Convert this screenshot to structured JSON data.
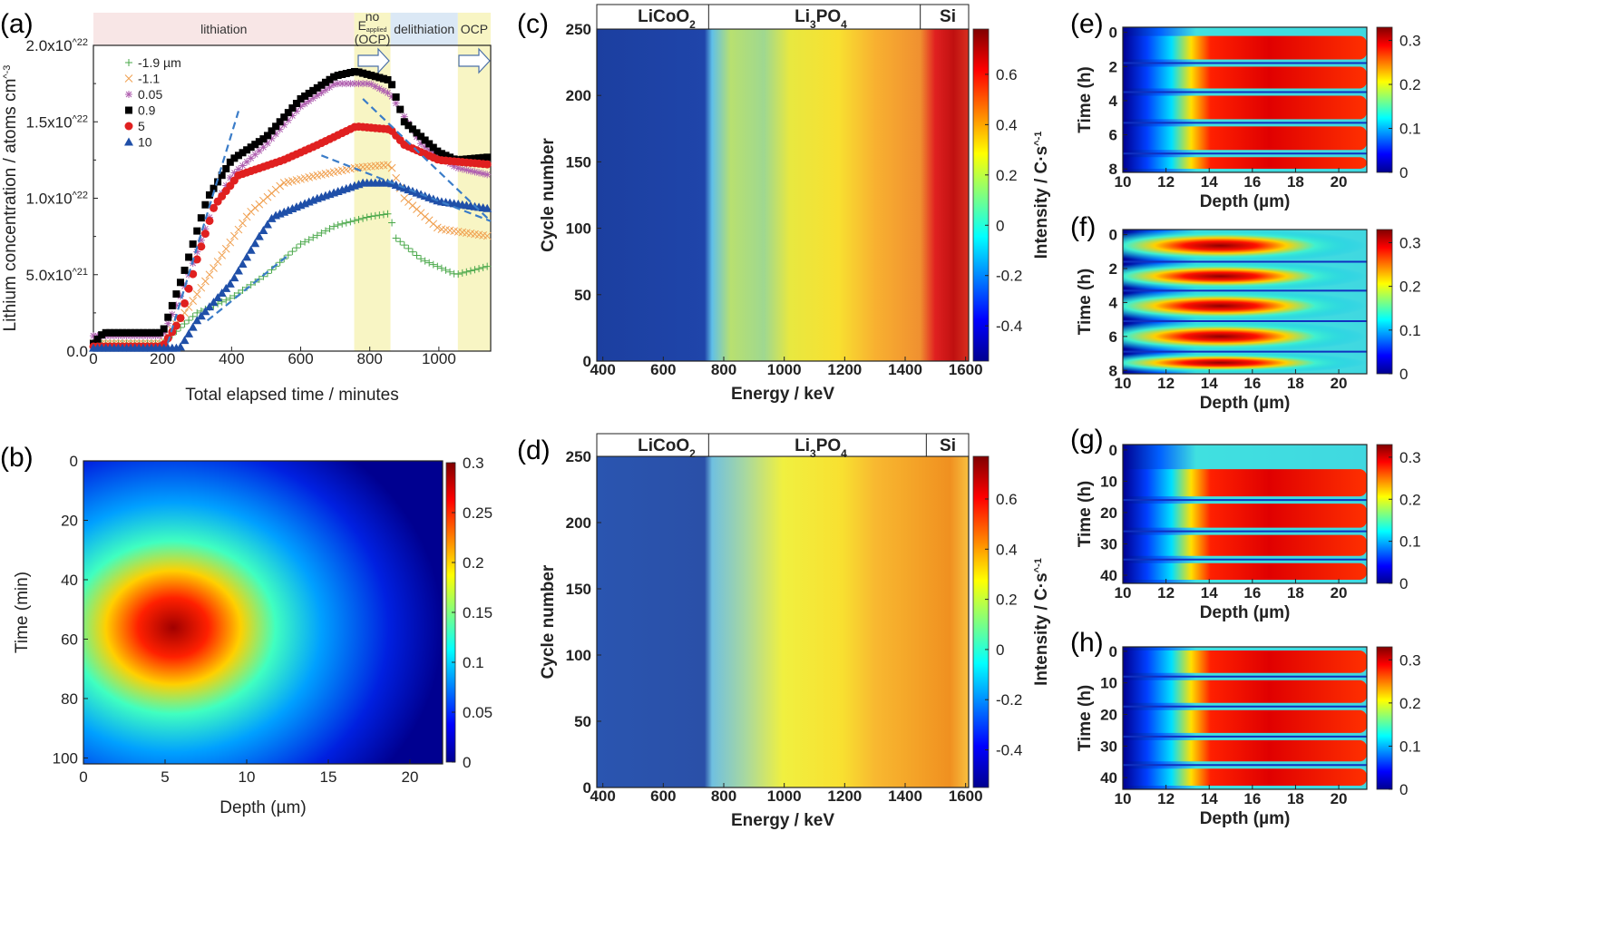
{
  "panel_labels": [
    "(a)",
    "(b)",
    "(c)",
    "(d)",
    "(e)",
    "(f)",
    "(g)",
    "(h)"
  ],
  "colors": {
    "jet": [
      "#00008f",
      "#0000ff",
      "#00ffff",
      "#ffff00",
      "#ff0000",
      "#800000"
    ],
    "lithiation_band": "#f8e6e6",
    "ocp_band": "#f8f5c4",
    "delithiation_band": "#dbe8f5",
    "fit_line": "#3a7cc8"
  },
  "chart_data": [
    {
      "panel": "(a)",
      "type": "scatter",
      "xlabel": "Total elapsed time / minutes",
      "ylabel": "Lithium concentration / atoms cm^-3",
      "xlim": [
        0,
        1150
      ],
      "ylim": [
        0,
        2e+22
      ],
      "xticks": [
        0,
        200,
        400,
        600,
        800,
        1000
      ],
      "yticks": [
        {
          "v": 0,
          "label": "0.0"
        },
        {
          "v": 5e+21,
          "label": "5.0x10^21"
        },
        {
          "v": 1e+22,
          "label": "1.0x10^22"
        },
        {
          "v": 1.5e+22,
          "label": "1.5x10^22"
        },
        {
          "v": 2e+22,
          "label": "2.0x10^22"
        }
      ],
      "phase_bands": [
        {
          "label": "lithiation",
          "from": 0,
          "to": 755,
          "color": "#f8e6e6"
        },
        {
          "label": "no E_applied (OCP)",
          "from": 755,
          "to": 860,
          "color": "#f8f5c4"
        },
        {
          "label": "delithiation",
          "from": 860,
          "to": 1055,
          "color": "#dbe8f5"
        },
        {
          "label": "OCP",
          "from": 1055,
          "to": 1150,
          "color": "#f8f5c4"
        }
      ],
      "legend_position": "top-left",
      "series": [
        {
          "name": "-1.9 µm",
          "marker": "plus",
          "color": "#4aa84a",
          "points": [
            [
              0,
              5e+20
            ],
            [
              200,
              5e+20
            ],
            [
              300,
              2.5e+21
            ],
            [
              400,
              3.5e+21
            ],
            [
              500,
              5e+21
            ],
            [
              600,
              7e+21
            ],
            [
              700,
              8.2e+21
            ],
            [
              800,
              8.8e+21
            ],
            [
              860,
              9e+21
            ],
            [
              870,
              7.5e+21
            ],
            [
              950,
              6e+21
            ],
            [
              1050,
              5e+21
            ],
            [
              1150,
              5.6e+21
            ]
          ]
        },
        {
          "name": "-1.1",
          "marker": "x",
          "color": "#f0a050",
          "points": [
            [
              0,
              5e+20
            ],
            [
              200,
              5e+20
            ],
            [
              280,
              3e+21
            ],
            [
              350,
              5.5e+21
            ],
            [
              450,
              9e+21
            ],
            [
              550,
              1.1e+22
            ],
            [
              650,
              1.15e+22
            ],
            [
              760,
              1.2e+22
            ],
            [
              860,
              1.22e+22
            ],
            [
              900,
              1e+22
            ],
            [
              1000,
              8e+21
            ],
            [
              1150,
              7.5e+21
            ]
          ]
        },
        {
          "name": "0.05",
          "marker": "star",
          "color": "#b060b0",
          "points": [
            [
              0,
              1e+21
            ],
            [
              200,
              1e+21
            ],
            [
              260,
              4e+21
            ],
            [
              340,
              9e+21
            ],
            [
              400,
              1.15e+22
            ],
            [
              500,
              1.35e+22
            ],
            [
              600,
              1.6e+22
            ],
            [
              700,
              1.75e+22
            ],
            [
              800,
              1.75e+22
            ],
            [
              860,
              1.68e+22
            ],
            [
              950,
              1.35e+22
            ],
            [
              1050,
              1.2e+22
            ],
            [
              1150,
              1.15e+22
            ]
          ]
        },
        {
          "name": "0.9",
          "marker": "square",
          "color": "#000000",
          "points": [
            [
              0,
              5e+20
            ],
            [
              30,
              1.2e+21
            ],
            [
              200,
              1.2e+21
            ],
            [
              260,
              5e+21
            ],
            [
              330,
              1e+22
            ],
            [
              400,
              1.25e+22
            ],
            [
              500,
              1.4e+22
            ],
            [
              600,
              1.65e+22
            ],
            [
              700,
              1.8e+22
            ],
            [
              760,
              1.83e+22
            ],
            [
              860,
              1.77e+22
            ],
            [
              900,
              1.5e+22
            ],
            [
              1000,
              1.3e+22
            ],
            [
              1050,
              1.25e+22
            ],
            [
              1150,
              1.27e+22
            ]
          ]
        },
        {
          "name": "5",
          "marker": "circle",
          "color": "#e02020",
          "points": [
            [
              0,
              3e+20
            ],
            [
              200,
              3e+20
            ],
            [
              250,
              2e+21
            ],
            [
              300,
              6e+21
            ],
            [
              350,
              9.5e+21
            ],
            [
              420,
              1.15e+22
            ],
            [
              550,
              1.25e+22
            ],
            [
              650,
              1.35e+22
            ],
            [
              760,
              1.47e+22
            ],
            [
              860,
              1.45e+22
            ],
            [
              900,
              1.35e+22
            ],
            [
              1000,
              1.25e+22
            ],
            [
              1150,
              1.22e+22
            ]
          ]
        },
        {
          "name": "10",
          "marker": "triangle",
          "color": "#1f4fa8",
          "points": [
            [
              0,
              2e+20
            ],
            [
              250,
              2e+20
            ],
            [
              300,
              2e+21
            ],
            [
              400,
              4.5e+21
            ],
            [
              480,
              7.5e+21
            ],
            [
              520,
              8.8e+21
            ],
            [
              650,
              1e+22
            ],
            [
              780,
              1.1e+22
            ],
            [
              860,
              1.1e+22
            ],
            [
              1000,
              9.8e+21
            ],
            [
              1150,
              9.3e+21
            ]
          ]
        }
      ],
      "fit_lines": [
        [
          [
            215,
            5e+20
          ],
          [
            420,
            1.57e+22
          ]
        ],
        [
          [
            330,
            2e+21
          ],
          [
            560,
            6.2e+21
          ]
        ],
        [
          [
            660,
            1.28e+22
          ],
          [
            1150,
            8.5e+21
          ]
        ],
        [
          [
            780,
            1.65e+22
          ],
          [
            1150,
            8.5e+21
          ]
        ]
      ]
    },
    {
      "panel": "(b)",
      "type": "heatmap",
      "xlabel": "Depth (µm)",
      "ylabel": "Time (min)",
      "xlim": [
        0,
        22
      ],
      "ylim": [
        0,
        102
      ],
      "xticks": [
        0,
        5,
        10,
        15,
        20
      ],
      "yticks": [
        0,
        20,
        40,
        60,
        80,
        100
      ],
      "colorbar": {
        "range": [
          0,
          0.3
        ],
        "ticks": [
          {
            "v": 0,
            "label": "0"
          },
          {
            "v": 0.05,
            "label": "0.05"
          },
          {
            "v": 0.1,
            "label": "0.1"
          },
          {
            "v": 0.15,
            "label": "0.15"
          },
          {
            "v": 0.2,
            "label": "0.2"
          },
          {
            "v": 0.25,
            "label": "0.25"
          },
          {
            "v": 0.3,
            "label": "0.3"
          }
        ]
      },
      "peak": {
        "depth": 5.5,
        "time": 55,
        "value": 0.3
      }
    },
    {
      "panel": "(c)",
      "type": "heatmap",
      "xlabel": "Energy / keV",
      "ylabel": "Cycle number",
      "xlim": [
        380,
        1610
      ],
      "ylim": [
        0,
        250
      ],
      "xticks": [
        400,
        600,
        800,
        1000,
        1200,
        1400,
        1600
      ],
      "yticks": [
        0,
        50,
        100,
        150,
        200,
        250
      ],
      "regions": [
        {
          "label": "LiCoO2",
          "from": 380,
          "to": 750
        },
        {
          "label": "Li3PO4",
          "from": 750,
          "to": 1450
        },
        {
          "label": "Si",
          "from": 1450,
          "to": 1610
        }
      ],
      "colorbar": {
        "label": "Intensity / C·s^-1",
        "range": [
          -0.54,
          0.78
        ],
        "ticks": [
          {
            "v": -0.4,
            "label": "-0.4"
          },
          {
            "v": -0.2,
            "label": "-0.2"
          },
          {
            "v": 0,
            "label": "0"
          },
          {
            "v": 0.2,
            "label": "0.2"
          },
          {
            "v": 0.4,
            "label": "0.4"
          },
          {
            "v": 0.6,
            "label": "0.6"
          }
        ]
      }
    },
    {
      "panel": "(d)",
      "type": "heatmap",
      "xlabel": "Energy / keV",
      "ylabel": "Cycle number",
      "xlim": [
        380,
        1610
      ],
      "ylim": [
        0,
        250
      ],
      "xticks": [
        400,
        600,
        800,
        1000,
        1200,
        1400,
        1600
      ],
      "yticks": [
        0,
        50,
        100,
        150,
        200,
        250
      ],
      "regions": [
        {
          "label": "LiCoO2",
          "from": 380,
          "to": 750
        },
        {
          "label": "Li3PO4",
          "from": 750,
          "to": 1470
        },
        {
          "label": "Si",
          "from": 1470,
          "to": 1610
        }
      ],
      "colorbar": {
        "label": "Intensity / C·s^-1",
        "range": [
          -0.55,
          0.77
        ],
        "ticks": [
          {
            "v": -0.4,
            "label": "-0.4"
          },
          {
            "v": -0.2,
            "label": "-0.2"
          },
          {
            "v": 0,
            "label": "0"
          },
          {
            "v": 0.2,
            "label": "0.2"
          },
          {
            "v": 0.4,
            "label": "0.4"
          },
          {
            "v": 0.6,
            "label": "0.6"
          }
        ]
      }
    },
    {
      "panel": "(e)",
      "type": "heatmap",
      "xlabel": "Depth (µm)",
      "ylabel": "Time (h)",
      "xlim": [
        10,
        21.3
      ],
      "ylim": [
        -0.3,
        8.2
      ],
      "xticks": [
        10,
        12,
        14,
        16,
        18,
        20
      ],
      "yticks": [
        0,
        2,
        4,
        6,
        8
      ],
      "bands": [
        0,
        1.8,
        3.5,
        5.3,
        7.1,
        8.2
      ],
      "pattern": "stripes",
      "colorbar": {
        "range": [
          0,
          0.33
        ],
        "ticks": [
          {
            "v": 0,
            "label": "0"
          },
          {
            "v": 0.1,
            "label": "0.1"
          },
          {
            "v": 0.2,
            "label": "0.2"
          },
          {
            "v": 0.3,
            "label": "0.3"
          }
        ]
      }
    },
    {
      "panel": "(f)",
      "type": "heatmap",
      "xlabel": "Depth (µm)",
      "ylabel": "Time (h)",
      "xlim": [
        10,
        21.3
      ],
      "ylim": [
        -0.3,
        8.2
      ],
      "xticks": [
        10,
        12,
        14,
        16,
        18,
        20
      ],
      "yticks": [
        0,
        2,
        4,
        6,
        8
      ],
      "bands": [
        -0.3,
        1.6,
        3.3,
        5.1,
        6.9,
        8.2
      ],
      "pattern": "blobs",
      "colorbar": {
        "range": [
          0,
          0.33
        ],
        "ticks": [
          {
            "v": 0,
            "label": "0"
          },
          {
            "v": 0.1,
            "label": "0.1"
          },
          {
            "v": 0.2,
            "label": "0.2"
          },
          {
            "v": 0.3,
            "label": "0.3"
          }
        ]
      }
    },
    {
      "panel": "(g)",
      "type": "heatmap",
      "xlabel": "Depth (µm)",
      "ylabel": "Time (h)",
      "xlim": [
        10,
        21.3
      ],
      "ylim": [
        -1.7,
        42.6
      ],
      "xticks": [
        10,
        12,
        14,
        16,
        18,
        20
      ],
      "yticks": [
        0,
        10,
        20,
        30,
        40
      ],
      "bands": [
        5,
        16,
        26,
        35,
        42.6
      ],
      "pattern": "stripes",
      "colorbar": {
        "range": [
          0,
          0.33
        ],
        "ticks": [
          {
            "v": 0,
            "label": "0"
          },
          {
            "v": 0.1,
            "label": "0.1"
          },
          {
            "v": 0.2,
            "label": "0.2"
          },
          {
            "v": 0.3,
            "label": "0.3"
          }
        ]
      }
    },
    {
      "panel": "(h)",
      "type": "heatmap",
      "xlabel": "Depth (µm)",
      "ylabel": "Time (h)",
      "xlim": [
        10,
        21.3
      ],
      "ylim": [
        -1.4,
        43.7
      ],
      "xticks": [
        10,
        12,
        14,
        16,
        18,
        20
      ],
      "yticks": [
        0,
        10,
        20,
        30,
        40
      ],
      "bands": [
        -1.4,
        8,
        17.5,
        27,
        36,
        43.7
      ],
      "pattern": "stripes",
      "colorbar": {
        "range": [
          0,
          0.33
        ],
        "ticks": [
          {
            "v": 0,
            "label": "0"
          },
          {
            "v": 0.1,
            "label": "0.1"
          },
          {
            "v": 0.2,
            "label": "0.2"
          },
          {
            "v": 0.3,
            "label": "0.3"
          }
        ]
      }
    }
  ]
}
